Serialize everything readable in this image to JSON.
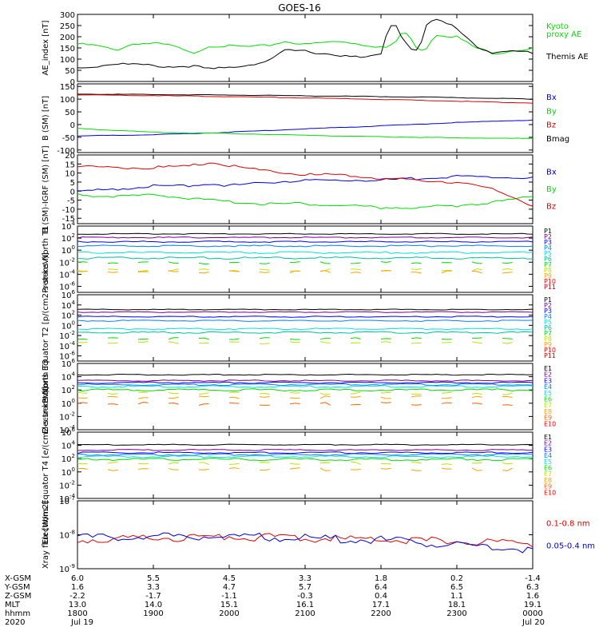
{
  "title": "GOES-16",
  "colors": {
    "black": "#000000",
    "red": "#e00000",
    "green": "#00dd00",
    "blue": "#0000dd",
    "P": [
      "#000000",
      "#7a0090",
      "#0000ff",
      "#0080ff",
      "#00e0e0",
      "#00c0a0",
      "#00dd00",
      "#c0e000",
      "#ffa000",
      "#ff0000",
      "#c00000"
    ],
    "E": [
      "#000000",
      "#7a0090",
      "#0000ff",
      "#0080ff",
      "#00e0e0",
      "#00dd00",
      "#c0e000",
      "#ffa000",
      "#ff6000",
      "#ff0000"
    ]
  },
  "time_axis": {
    "xlim_hours": [
      18,
      24
    ],
    "rows": [
      {
        "label": "X-GSM",
        "values": [
          "6.0",
          "5.5",
          "4.5",
          "3.3",
          "1.8",
          "0.2",
          "-1.4"
        ]
      },
      {
        "label": "Y-GSM",
        "values": [
          "1.6",
          "3.3",
          "4.7",
          "5.7",
          "6.4",
          "6.5",
          "6.3"
        ]
      },
      {
        "label": "Z-GSM",
        "values": [
          "-2.2",
          "-1.7",
          "-1.1",
          "-0.3",
          "0.4",
          "1.1",
          "1.6"
        ]
      },
      {
        "label": "MLT",
        "values": [
          "13.0",
          "14.0",
          "15.1",
          "16.1",
          "17.1",
          "18.1",
          "19.1"
        ]
      },
      {
        "label": "hhmm",
        "values": [
          "1800",
          "1900",
          "2000",
          "2100",
          "2200",
          "2300",
          "0000"
        ]
      },
      {
        "label": "2020",
        "values": [
          "Jul 19",
          "",
          "",
          "",
          "",
          "",
          "Jul 20"
        ]
      }
    ]
  },
  "chart_data": [
    {
      "type": "line",
      "ylabel": "AE_index [nT]",
      "ylim": [
        0,
        300
      ],
      "yticks": [
        "0",
        "50",
        "100",
        "150",
        "200",
        "250",
        "300"
      ],
      "x": [
        18,
        18.25,
        18.5,
        18.75,
        19,
        19.25,
        19.5,
        19.75,
        20,
        20.25,
        20.5,
        20.75,
        21,
        21.25,
        21.5,
        21.75,
        22,
        22.1,
        22.2,
        22.3,
        22.4,
        22.5,
        22.6,
        22.7,
        22.75,
        23,
        23.25,
        23.5,
        23.75,
        24
      ],
      "series": [
        {
          "name": "Kyoto proxy AE",
          "color": "green",
          "values": [
            168,
            160,
            140,
            170,
            170,
            160,
            125,
            160,
            158,
            155,
            160,
            180,
            165,
            175,
            180,
            165,
            155,
            150,
            180,
            230,
            185,
            140,
            150,
            205,
            210,
            200,
            150,
            125,
            140,
            145
          ]
        },
        {
          "name": "Themis AE",
          "color": "black",
          "values": [
            60,
            68,
            80,
            76,
            70,
            65,
            70,
            55,
            62,
            75,
            90,
            140,
            135,
            125,
            115,
            105,
            120,
            250,
            250,
            185,
            150,
            135,
            250,
            275,
            275,
            240,
            160,
            125,
            135,
            130
          ]
        }
      ],
      "legend": [
        {
          "text": "Kyoto",
          "color": "green"
        },
        {
          "text": "proxy AE",
          "color": "green"
        },
        {
          "text": "Themis AE",
          "color": "black"
        }
      ]
    },
    {
      "type": "line",
      "ylabel": "B (SM) [nT]",
      "ylim": [
        -110,
        160
      ],
      "yticks": [
        "-100",
        "-50",
        "0",
        "50",
        "100",
        "150"
      ],
      "yticks_values": [
        -100,
        -50,
        0,
        50,
        100,
        150
      ],
      "x": [
        18,
        19,
        20,
        21,
        22,
        23,
        24
      ],
      "series": [
        {
          "name": "Bmag",
          "color": "black",
          "values": [
            120,
            118,
            116,
            113,
            110,
            106,
            100
          ]
        },
        {
          "name": "Bx",
          "color": "blue",
          "values": [
            -45,
            -40,
            -30,
            -17,
            -5,
            8,
            18
          ]
        },
        {
          "name": "By",
          "color": "green",
          "values": [
            -15,
            -30,
            -35,
            -42,
            -48,
            -52,
            -55
          ]
        },
        {
          "name": "Bz",
          "color": "red",
          "values": [
            117,
            114,
            110,
            105,
            99,
            92,
            85
          ]
        }
      ],
      "legend": [
        {
          "text": "Bx",
          "color": "blue"
        },
        {
          "text": "By",
          "color": "green"
        },
        {
          "text": "Bz",
          "color": "red"
        },
        {
          "text": "Bmag",
          "color": "black"
        }
      ]
    },
    {
      "type": "line",
      "ylabel": "B (SM)-IGRF (SM) [nT]",
      "ylim": [
        -18,
        20
      ],
      "yticks": [
        "-15",
        "-10",
        "-5",
        "0",
        "5",
        "10",
        "15",
        "20"
      ],
      "yticks_values": [
        -15,
        -10,
        -5,
        0,
        5,
        10,
        15,
        20
      ],
      "x": [
        18,
        18.5,
        19,
        19.5,
        19.75,
        20,
        20.5,
        21,
        21.5,
        22,
        22.5,
        23,
        23.5,
        24
      ],
      "series": [
        {
          "name": "Bx",
          "color": "blue",
          "values": [
            0,
            1,
            3,
            3,
            4,
            3,
            5,
            6,
            6,
            6,
            7,
            8,
            8,
            7
          ]
        },
        {
          "name": "By",
          "color": "green",
          "values": [
            -2,
            -3,
            -2,
            -4,
            -5,
            -6,
            -7,
            -7,
            -8,
            -9,
            -9,
            -8,
            -6,
            -3
          ]
        },
        {
          "name": "Bz",
          "color": "red",
          "values": [
            14,
            13,
            13,
            14,
            16,
            14,
            11,
            9,
            9,
            7,
            6,
            5,
            1,
            -8
          ]
        }
      ],
      "legend": [
        {
          "text": "Bx",
          "color": "blue"
        },
        {
          "text": "By",
          "color": "green"
        },
        {
          "text": "Bz",
          "color": "red"
        }
      ]
    },
    {
      "type": "line",
      "scale": "log",
      "ylabel": "Protons North T1",
      "ylim_exp": [
        -7,
        4
      ],
      "yticks_exp": [
        4,
        2,
        0,
        -2,
        -4,
        -6
      ],
      "x": [
        18,
        24
      ],
      "series": [
        {
          "name": "P1",
          "color": "P0",
          "values": [
            2.7,
            2.7
          ]
        },
        {
          "name": "P2",
          "color": "P1",
          "values": [
            2.1,
            2.1
          ]
        },
        {
          "name": "P3",
          "color": "P2",
          "values": [
            1.4,
            1.4
          ]
        },
        {
          "name": "P4",
          "color": "P3",
          "values": [
            0.7,
            0.7
          ]
        },
        {
          "name": "P5",
          "color": "P4",
          "values": [
            -0.4,
            -0.4
          ]
        },
        {
          "name": "P6",
          "color": "P5",
          "values": [
            -1.3,
            -1.3
          ]
        },
        {
          "name": "P7",
          "color": "P6",
          "values": [
            -2.1,
            -2.1
          ]
        },
        {
          "name": "P8",
          "color": "P7",
          "values": [
            -3.3,
            -3.3
          ]
        },
        {
          "name": "P9",
          "color": "P8",
          "values": [
            -3.6,
            -3.6
          ]
        }
      ],
      "legend_labels": [
        "P1",
        "P2",
        "P3",
        "P4",
        "P5",
        "P6",
        "P7",
        "P8",
        "P9",
        "P10",
        "P11"
      ]
    },
    {
      "type": "line",
      "scale": "log",
      "ylabel": "Protons Equator T2 [p/(cm2-s-sr-keV)]",
      "ylim_exp": [
        -7,
        6
      ],
      "yticks_exp": [
        6,
        4,
        2,
        0,
        -2,
        -4,
        -6
      ],
      "x": [
        18,
        24
      ],
      "series": [
        {
          "name": "P1",
          "color": "P0",
          "values": [
            3.1,
            3.1
          ]
        },
        {
          "name": "P2",
          "color": "P1",
          "values": [
            2.6,
            2.6
          ]
        },
        {
          "name": "P3",
          "color": "P2",
          "values": [
            1.7,
            1.7
          ]
        },
        {
          "name": "P4",
          "color": "P3",
          "values": [
            0.9,
            0.9
          ]
        },
        {
          "name": "P5",
          "color": "P4",
          "values": [
            -0.7,
            -0.7
          ]
        },
        {
          "name": "P6",
          "color": "P5",
          "values": [
            -1.4,
            -1.4
          ]
        },
        {
          "name": "P7",
          "color": "P6",
          "values": [
            -2.6,
            -2.6
          ]
        },
        {
          "name": "P8",
          "color": "P7",
          "values": [
            -3.4,
            -3.4
          ]
        }
      ],
      "legend_labels": [
        "P1",
        "P2",
        "P3",
        "P4",
        "P5",
        "P6",
        "P7",
        "P8",
        "P9",
        "P10",
        "P11"
      ]
    },
    {
      "type": "line",
      "scale": "log",
      "ylabel": "Electrons North T3",
      "ylim_exp": [
        -4,
        6
      ],
      "yticks_exp": [
        6,
        4,
        2,
        0,
        -2,
        -4
      ],
      "x": [
        18,
        24
      ],
      "series": [
        {
          "name": "E1",
          "color": "E0",
          "values": [
            4.3,
            4.3
          ]
        },
        {
          "name": "E2",
          "color": "E1",
          "values": [
            3.4,
            3.4
          ]
        },
        {
          "name": "E3",
          "color": "E2",
          "values": [
            3.1,
            3.1
          ]
        },
        {
          "name": "E4",
          "color": "E3",
          "values": [
            2.8,
            2.8
          ]
        },
        {
          "name": "E5",
          "color": "E4",
          "values": [
            2.5,
            2.5
          ]
        },
        {
          "name": "E6",
          "color": "E5",
          "values": [
            2.0,
            2.0
          ]
        },
        {
          "name": "E7",
          "color": "E6",
          "values": [
            1.5,
            1.5
          ]
        },
        {
          "name": "E8",
          "color": "E7",
          "values": [
            0.9,
            0.9
          ]
        },
        {
          "name": "E9",
          "color": "E8",
          "values": [
            -0.1,
            -0.1
          ]
        }
      ],
      "legend_labels": [
        "E1",
        "E2",
        "E3",
        "E4",
        "E5",
        "E6",
        "E7",
        "E8",
        "E9",
        "E10"
      ]
    },
    {
      "type": "line",
      "scale": "log",
      "ylabel": "Electrons Equator T4 [e/(cm2-s-sr-keV)]",
      "ylim_exp": [
        -4,
        6
      ],
      "yticks_exp": [
        6,
        4,
        2,
        0,
        -2,
        -4
      ],
      "x": [
        18,
        24
      ],
      "series": [
        {
          "name": "E1",
          "color": "E0",
          "values": [
            4.1,
            4.1
          ]
        },
        {
          "name": "E2",
          "color": "E1",
          "values": [
            3.3,
            3.3
          ]
        },
        {
          "name": "E3",
          "color": "E2",
          "values": [
            2.9,
            2.9
          ]
        },
        {
          "name": "E4",
          "color": "E3",
          "values": [
            2.6,
            2.6
          ]
        },
        {
          "name": "E5",
          "color": "E4",
          "values": [
            2.3,
            2.3
          ]
        },
        {
          "name": "E6",
          "color": "E5",
          "values": [
            1.9,
            1.9
          ]
        },
        {
          "name": "E7",
          "color": "E6",
          "values": [
            1.3,
            1.3
          ]
        },
        {
          "name": "E8",
          "color": "E7",
          "values": [
            0.4,
            0.4
          ]
        }
      ],
      "legend_labels": [
        "E1",
        "E2",
        "E3",
        "E4",
        "E5",
        "E6",
        "E7",
        "E8",
        "E9",
        "E10"
      ]
    },
    {
      "type": "line",
      "scale": "log",
      "ylabel": "Xray flux [W/m2]",
      "ylim_exp": [
        -9,
        -7
      ],
      "yticks_exp": [
        -7,
        -8,
        -9
      ],
      "x": [
        18,
        19,
        20,
        21,
        22,
        23,
        24
      ],
      "series": [
        {
          "name": "0.1-0.8 nm",
          "color": "red",
          "values": [
            -8.15,
            -8.1,
            -8.05,
            -8.1,
            -8.15,
            -8.2,
            -8.25
          ]
        },
        {
          "name": "0.05-0.4 nm",
          "color": "blue",
          "values": [
            -8.1,
            -8.05,
            -8.05,
            -8.1,
            -8.15,
            -8.3,
            -8.45
          ]
        }
      ],
      "legend": [
        {
          "text": "0.1-0.8 nm",
          "color": "red"
        },
        {
          "text": "0.05-0.4 nm",
          "color": "blue"
        }
      ]
    }
  ]
}
